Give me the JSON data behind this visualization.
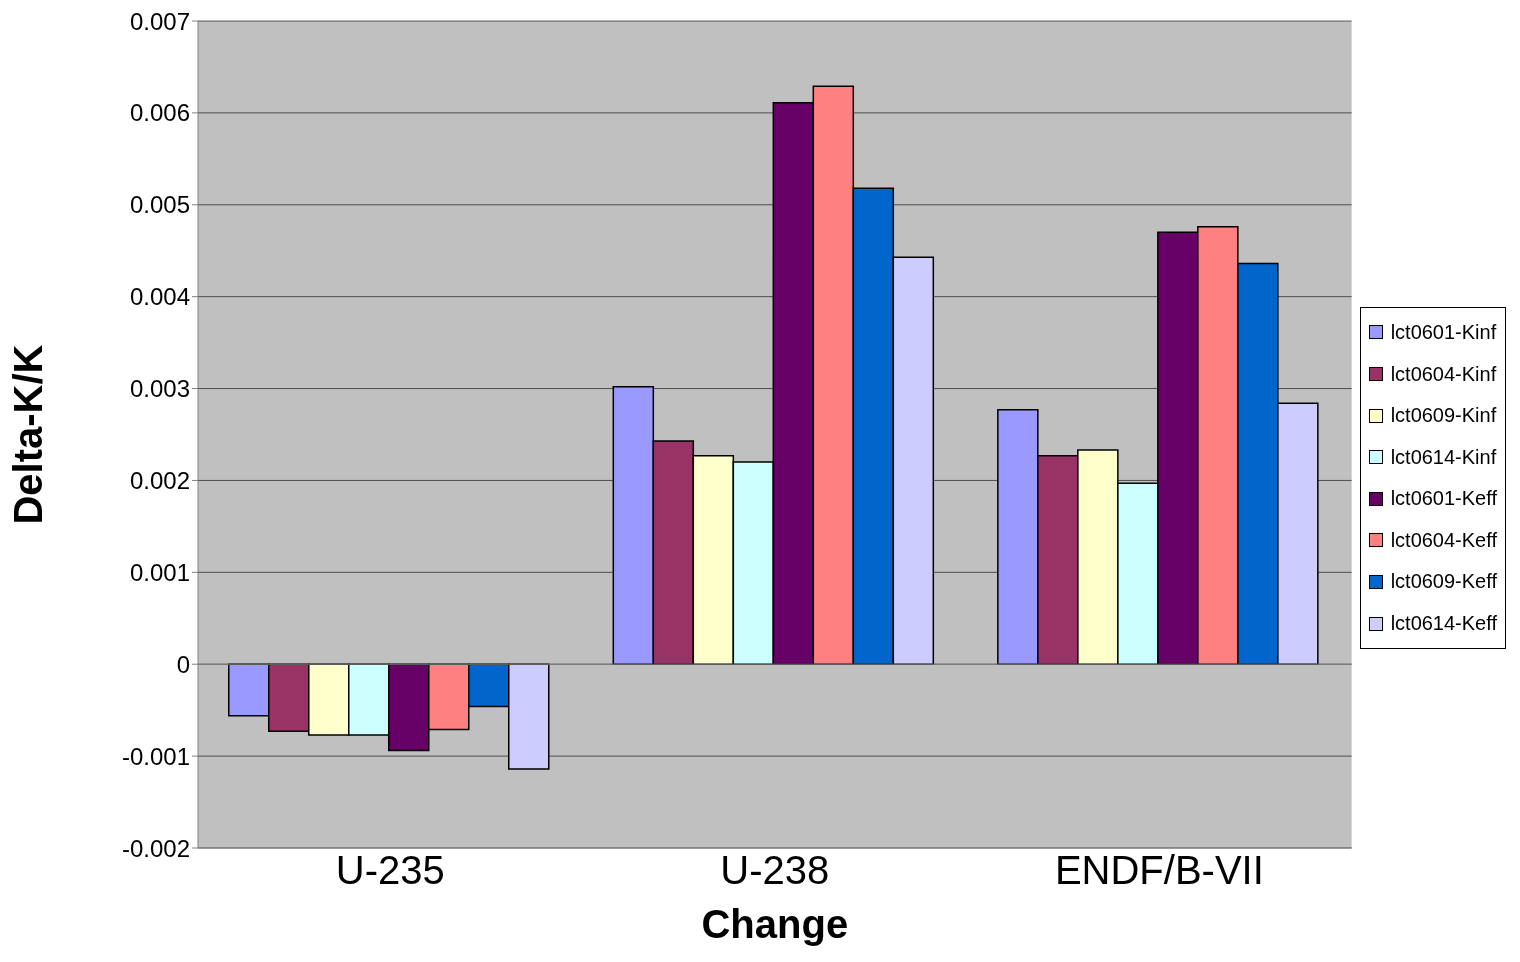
{
  "chart_data": {
    "type": "bar",
    "xlabel": "Change",
    "ylabel": "Delta-K/K",
    "categories": [
      "U-235",
      "U-238",
      "ENDF/B-VII"
    ],
    "series": [
      {
        "name": "lct0601-Kinf",
        "color": "#9999ff",
        "values": [
          -0.00056,
          0.00302,
          0.00277
        ]
      },
      {
        "name": "lct0604-Kinf",
        "color": "#993366",
        "values": [
          -0.00073,
          0.00243,
          0.00227
        ]
      },
      {
        "name": "lct0609-Kinf",
        "color": "#ffffcc",
        "values": [
          -0.00077,
          0.00227,
          0.00233
        ]
      },
      {
        "name": "lct0614-Kinf",
        "color": "#ccffff",
        "values": [
          -0.00077,
          0.0022,
          0.00197
        ]
      },
      {
        "name": "lct0601-Keff",
        "color": "#660066",
        "values": [
          -0.00094,
          0.00611,
          0.0047
        ]
      },
      {
        "name": "lct0604-Keff",
        "color": "#ff8080",
        "values": [
          -0.00071,
          0.00629,
          0.00476
        ]
      },
      {
        "name": "lct0609-Keff",
        "color": "#0066cc",
        "values": [
          -0.00046,
          0.00518,
          0.00436
        ]
      },
      {
        "name": "lct0614-Keff",
        "color": "#ccccff",
        "values": [
          -0.00114,
          0.00443,
          0.00284
        ]
      }
    ],
    "ylim": [
      -0.002,
      0.007
    ],
    "yticks": [
      -0.002,
      -0.001,
      0,
      0.001,
      0.002,
      0.003,
      0.004,
      0.005,
      0.006,
      0.007
    ],
    "grid": "y",
    "legend": "right"
  }
}
